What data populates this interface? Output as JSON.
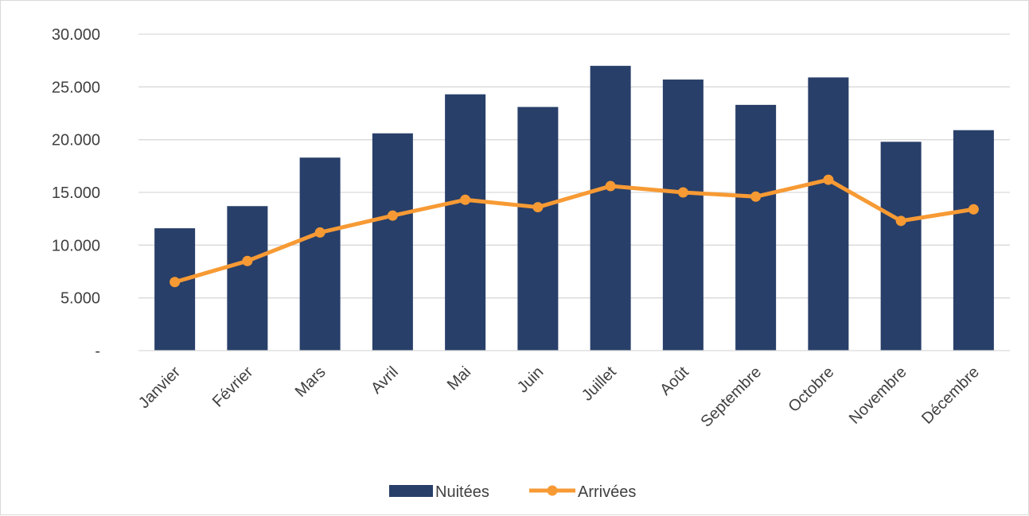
{
  "chart_data": {
    "type": "bar",
    "categories": [
      "Janvier",
      "Février",
      "Mars",
      "Avril",
      "Mai",
      "Juin",
      "Juillet",
      "Août",
      "Septembre",
      "Octobre",
      "Novembre",
      "Décembre"
    ],
    "series": [
      {
        "name": "Nuitées",
        "type": "bar",
        "color": "#283f69",
        "values": [
          11600,
          13700,
          18300,
          20600,
          24300,
          23100,
          27000,
          25700,
          23300,
          25900,
          19800,
          20900
        ]
      },
      {
        "name": "Arrivées",
        "type": "line",
        "color": "#f79a34",
        "values": [
          6500,
          8500,
          11200,
          12800,
          14300,
          13600,
          15600,
          15000,
          14600,
          16200,
          12300,
          13400
        ]
      }
    ],
    "y_ticks": [
      {
        "value": 0,
        "label": "-"
      },
      {
        "value": 5000,
        "label": "5.000"
      },
      {
        "value": 10000,
        "label": "10.000"
      },
      {
        "value": 15000,
        "label": "15.000"
      },
      {
        "value": 20000,
        "label": "20.000"
      },
      {
        "value": 25000,
        "label": "25.000"
      },
      {
        "value": 30000,
        "label": "30.000"
      }
    ],
    "ylim": [
      0,
      30000
    ],
    "grid": true,
    "legend_position": "bottom",
    "title": "",
    "xlabel": "",
    "ylabel": ""
  }
}
